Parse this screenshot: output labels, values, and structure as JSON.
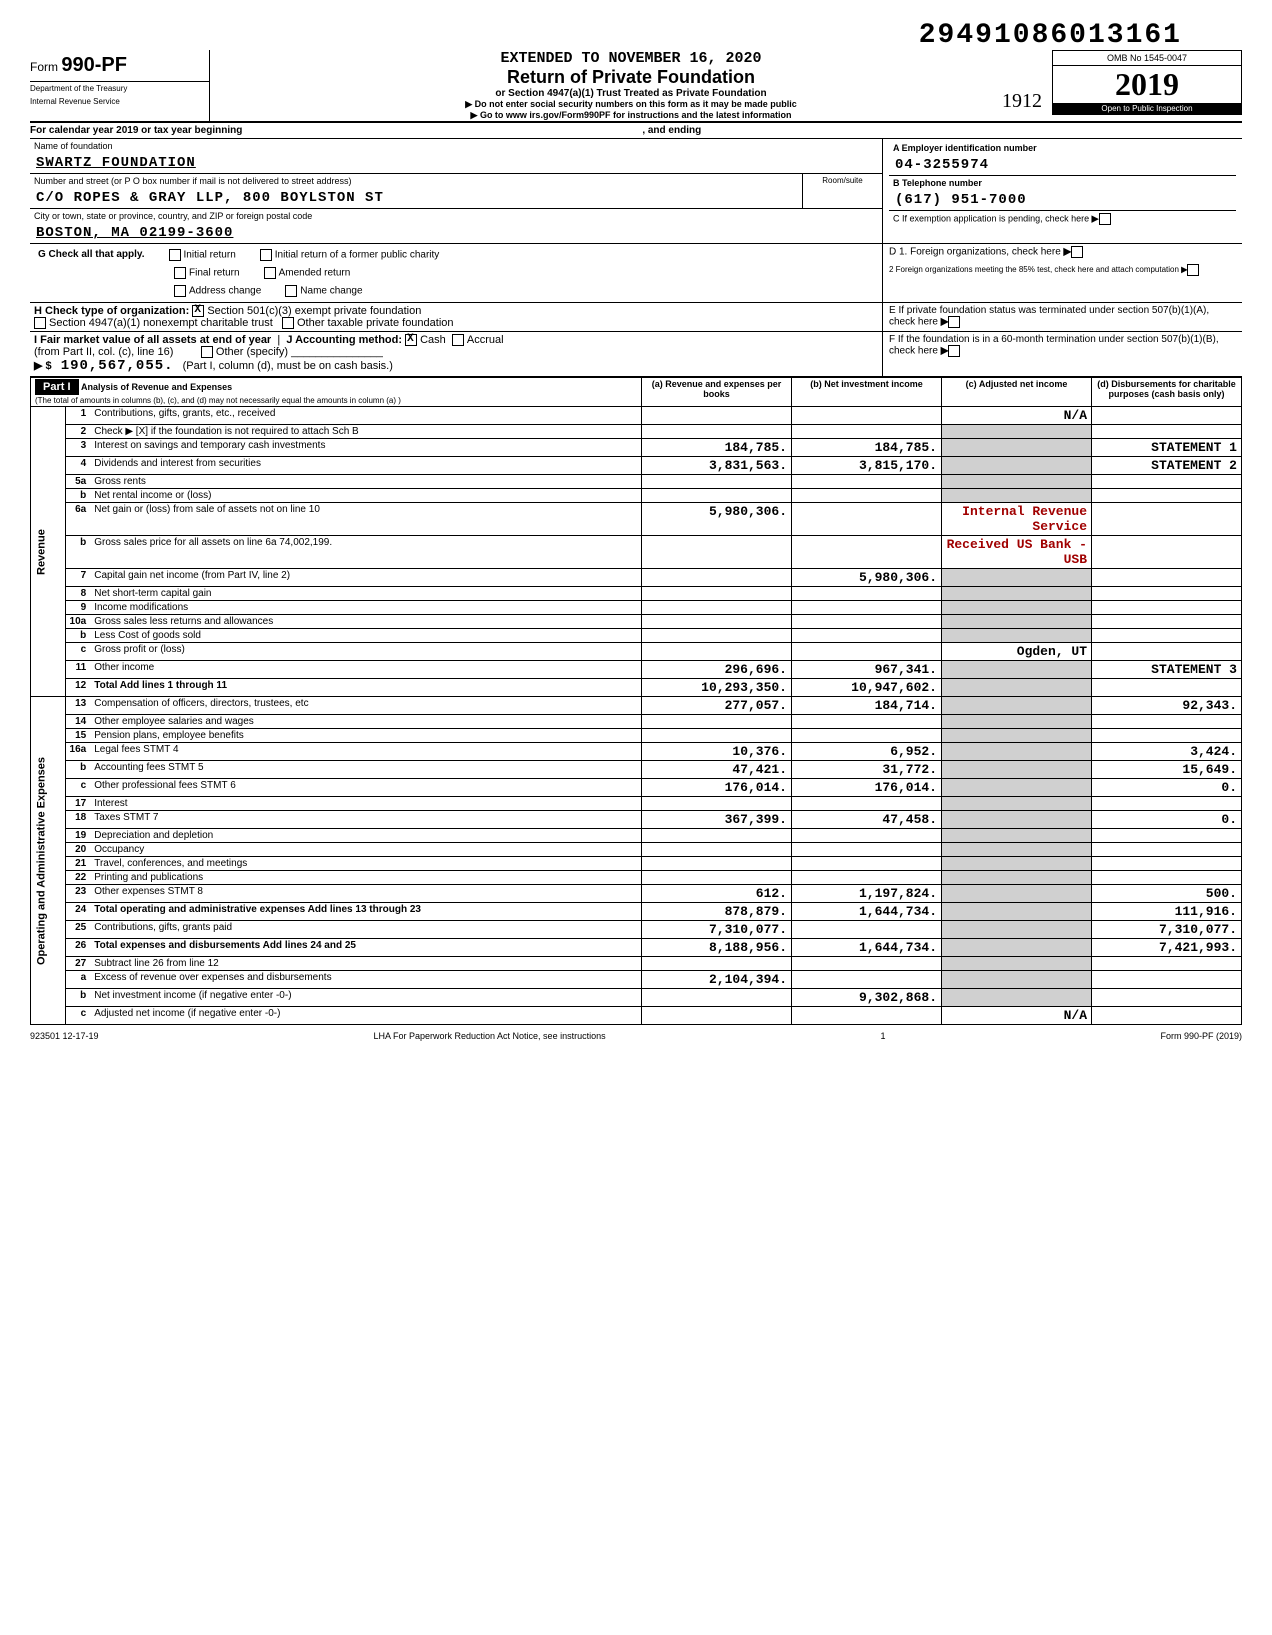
{
  "dln": "29491086013161",
  "header": {
    "form_label": "Form",
    "form_number": "990-PF",
    "dept1": "Department of the Treasury",
    "dept2": "Internal Revenue Service",
    "extended": "EXTENDED TO NOVEMBER 16, 2020",
    "title": "Return of Private Foundation",
    "subtitle": "or Section 4947(a)(1) Trust Treated as Private Foundation",
    "instr1": "▶ Do not enter social security numbers on this form as it may be made public",
    "instr2": "▶ Go to www irs.gov/Form990PF for instructions and the latest information",
    "omb": "OMB No  1545-0047",
    "year": "2019",
    "public": "Open to Public Inspection",
    "handwritten_date": "1912"
  },
  "cal_year": {
    "label": "For calendar year 2019 or tax year beginning",
    "ending_label": ", and ending"
  },
  "foundation": {
    "name_label": "Name of foundation",
    "name": "SWARTZ FOUNDATION",
    "addr_label": "Number and street (or P O  box number if mail is not delivered to street address)",
    "room_label": "Room/suite",
    "addr": "C/O ROPES & GRAY LLP, 800 BOYLSTON ST",
    "city_label": "City or town, state or province, country, and ZIP or foreign postal code",
    "city": "BOSTON, MA   02199-3600",
    "ein_label": "A Employer identification number",
    "ein": "04-3255974",
    "phone_label": "B Telephone number",
    "phone": "(617) 951-7000",
    "c_label": "C  If exemption application is pending, check here"
  },
  "checks": {
    "g_label": "G   Check all that apply.",
    "initial": "Initial return",
    "initial_former": "Initial return of a former public charity",
    "final": "Final return",
    "amended": "Amended return",
    "addr_change": "Address change",
    "name_change": "Name change",
    "d1": "D  1. Foreign organizations, check here",
    "d2": "2  Foreign organizations meeting the 85% test, check here and attach computation",
    "h_label": "H   Check type of organization:",
    "h_501c3": "Section 501(c)(3) exempt private foundation",
    "h_4947": "Section 4947(a)(1) nonexempt charitable trust",
    "h_other": "Other taxable private foundation",
    "e_label": "E  If private foundation status was terminated under section 507(b)(1)(A), check here",
    "i_label": "I   Fair market value of all assets at end of year",
    "i_from": "(from Part II, col. (c), line 16)",
    "i_amount": "190,567,055.",
    "i_note": "(Part I, column (d), must be on cash basis.)",
    "j_label": "J   Accounting method:",
    "j_cash": "Cash",
    "j_accrual": "Accrual",
    "j_other": "Other (specify)",
    "f_label": "F  If the foundation is in a 60-month termination under section 507(b)(1)(B), check here"
  },
  "part1": {
    "title": "Part I",
    "heading": "Analysis of Revenue and Expenses",
    "heading_sub": "(The total of amounts in columns (b), (c), and (d) may not necessarily equal the amounts in column (a) )",
    "col_a": "(a) Revenue and expenses per books",
    "col_b": "(b) Net investment income",
    "col_c": "(c) Adjusted net income",
    "col_d": "(d) Disbursements for charitable purposes (cash basis only)",
    "vlabel_rev": "Revenue",
    "vlabel_exp": "Operating and Administrative Expenses",
    "stamp1": "Internal Revenue Service",
    "stamp2": "Received US Bank - USB",
    "stamp3": "Ogden, UT",
    "rows": [
      {
        "n": "1",
        "desc": "Contributions, gifts, grants, etc., received",
        "a": "",
        "b": "",
        "c": "N/A",
        "d": ""
      },
      {
        "n": "2",
        "desc": "Check ▶ [X] if the foundation is not required to attach Sch  B",
        "a": "",
        "b": "",
        "c": "",
        "d": ""
      },
      {
        "n": "3",
        "desc": "Interest on savings and temporary cash investments",
        "a": "184,785.",
        "b": "184,785.",
        "c": "",
        "d": "STATEMENT 1"
      },
      {
        "n": "4",
        "desc": "Dividends and interest from securities",
        "a": "3,831,563.",
        "b": "3,815,170.",
        "c": "",
        "d": "STATEMENT 2"
      },
      {
        "n": "5a",
        "desc": "Gross rents",
        "a": "",
        "b": "",
        "c": "",
        "d": ""
      },
      {
        "n": "b",
        "desc": "Net rental income or (loss)",
        "a": "",
        "b": "",
        "c": "",
        "d": ""
      },
      {
        "n": "6a",
        "desc": "Net gain or (loss) from sale of assets not on line 10",
        "a": "5,980,306.",
        "b": "",
        "c": "",
        "d": ""
      },
      {
        "n": "b",
        "desc": "Gross sales price for all assets on line 6a    74,002,199.",
        "a": "",
        "b": "",
        "c": "",
        "d": ""
      },
      {
        "n": "7",
        "desc": "Capital gain net income (from Part IV, line 2)",
        "a": "",
        "b": "5,980,306.",
        "c": "",
        "d": ""
      },
      {
        "n": "8",
        "desc": "Net short-term capital gain",
        "a": "",
        "b": "",
        "c": "",
        "d": ""
      },
      {
        "n": "9",
        "desc": "Income modifications",
        "a": "",
        "b": "",
        "c": "",
        "d": ""
      },
      {
        "n": "10a",
        "desc": "Gross sales less returns and allowances",
        "a": "",
        "b": "",
        "c": "",
        "d": ""
      },
      {
        "n": "b",
        "desc": "Less  Cost of goods sold",
        "a": "",
        "b": "",
        "c": "",
        "d": ""
      },
      {
        "n": "c",
        "desc": "Gross profit or (loss)",
        "a": "",
        "b": "",
        "c": "",
        "d": ""
      },
      {
        "n": "11",
        "desc": "Other income",
        "a": "296,696.",
        "b": "967,341.",
        "c": "",
        "d": "STATEMENT 3"
      },
      {
        "n": "12",
        "desc": "Total  Add lines 1 through 11",
        "a": "10,293,350.",
        "b": "10,947,602.",
        "c": "",
        "d": ""
      },
      {
        "n": "13",
        "desc": "Compensation of officers, directors, trustees, etc",
        "a": "277,057.",
        "b": "184,714.",
        "c": "",
        "d": "92,343."
      },
      {
        "n": "14",
        "desc": "Other employee salaries and wages",
        "a": "",
        "b": "",
        "c": "",
        "d": ""
      },
      {
        "n": "15",
        "desc": "Pension plans, employee benefits",
        "a": "",
        "b": "",
        "c": "",
        "d": ""
      },
      {
        "n": "16a",
        "desc": "Legal fees                              STMT 4",
        "a": "10,376.",
        "b": "6,952.",
        "c": "",
        "d": "3,424."
      },
      {
        "n": "b",
        "desc": "Accounting fees                   STMT 5",
        "a": "47,421.",
        "b": "31,772.",
        "c": "",
        "d": "15,649."
      },
      {
        "n": "c",
        "desc": "Other professional fees       STMT 6",
        "a": "176,014.",
        "b": "176,014.",
        "c": "",
        "d": "0."
      },
      {
        "n": "17",
        "desc": "Interest",
        "a": "",
        "b": "",
        "c": "",
        "d": ""
      },
      {
        "n": "18",
        "desc": "Taxes                                     STMT 7",
        "a": "367,399.",
        "b": "47,458.",
        "c": "",
        "d": "0."
      },
      {
        "n": "19",
        "desc": "Depreciation and depletion",
        "a": "",
        "b": "",
        "c": "",
        "d": ""
      },
      {
        "n": "20",
        "desc": "Occupancy",
        "a": "",
        "b": "",
        "c": "",
        "d": ""
      },
      {
        "n": "21",
        "desc": "Travel, conferences, and meetings",
        "a": "",
        "b": "",
        "c": "",
        "d": ""
      },
      {
        "n": "22",
        "desc": "Printing and publications",
        "a": "",
        "b": "",
        "c": "",
        "d": ""
      },
      {
        "n": "23",
        "desc": "Other expenses                     STMT 8",
        "a": "612.",
        "b": "1,197,824.",
        "c": "",
        "d": "500."
      },
      {
        "n": "24",
        "desc": "Total operating and administrative expenses  Add lines 13 through 23",
        "a": "878,879.",
        "b": "1,644,734.",
        "c": "",
        "d": "111,916."
      },
      {
        "n": "25",
        "desc": "Contributions, gifts, grants paid",
        "a": "7,310,077.",
        "b": "",
        "c": "",
        "d": "7,310,077."
      },
      {
        "n": "26",
        "desc": "Total expenses and disbursements Add lines 24 and 25",
        "a": "8,188,956.",
        "b": "1,644,734.",
        "c": "",
        "d": "7,421,993."
      },
      {
        "n": "27",
        "desc": "Subtract line 26 from line 12",
        "a": "",
        "b": "",
        "c": "",
        "d": ""
      },
      {
        "n": "a",
        "desc": "Excess of revenue over expenses and disbursements",
        "a": "2,104,394.",
        "b": "",
        "c": "",
        "d": ""
      },
      {
        "n": "b",
        "desc": "Net investment income (if negative  enter -0-)",
        "a": "",
        "b": "9,302,868.",
        "c": "",
        "d": ""
      },
      {
        "n": "c",
        "desc": "Adjusted net income (if negative  enter -0-)",
        "a": "",
        "b": "",
        "c": "N/A",
        "d": ""
      }
    ]
  },
  "footer": {
    "lha": "LHA  For Paperwork Reduction Act Notice, see instructions",
    "code": "923501  12-17-19",
    "form": "Form 990-PF (2019)",
    "page": "1"
  }
}
